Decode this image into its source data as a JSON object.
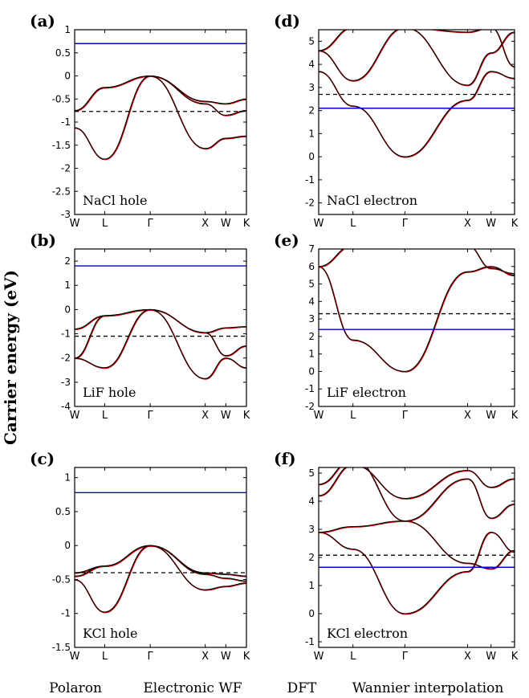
{
  "figure": {
    "ylabel": "Carrier energy (eV)",
    "legend": [
      "Polaron",
      "Electronic WF",
      "DFT",
      "Wannier interpolation"
    ],
    "colors": {
      "polaron": "#0000cc",
      "wf": "#000000",
      "dft": "#000000",
      "wannier": "#cc0000"
    }
  },
  "chart_data": [
    {
      "panel": "(a)",
      "type": "line",
      "label": "NaCl hole",
      "x_ticks": [
        "W",
        "L",
        "Γ",
        "X",
        "W",
        "K"
      ],
      "ylim": [
        -3,
        1
      ],
      "y_ticks": [
        "-3",
        "-2.5",
        "-2",
        "-1.5",
        "-1",
        "-0.5",
        "0",
        "0.5",
        "1"
      ],
      "polaron_level": 0.7,
      "wf_level": -0.77,
      "series": [
        {
          "values": [
            -0.75,
            -0.25,
            0.0,
            -0.55,
            -0.6,
            -0.5
          ]
        },
        {
          "values": [
            -0.75,
            -0.25,
            0.0,
            -0.6,
            -0.85,
            -0.75
          ]
        },
        {
          "values": [
            -1.12,
            -1.8,
            0.0,
            -1.57,
            -1.35,
            -1.3
          ]
        }
      ]
    },
    {
      "panel": "(d)",
      "type": "line",
      "label": "NaCl electron",
      "x_ticks": [
        "W",
        "L",
        "Γ",
        "X",
        "W",
        "K"
      ],
      "ylim": [
        -2.5,
        5.5
      ],
      "y_ticks": [
        "-2",
        "-1",
        "0",
        "1",
        "2",
        "3",
        "4",
        "5"
      ],
      "polaron_level": 2.1,
      "wf_level": 2.7,
      "series": [
        {
          "values": [
            3.7,
            2.2,
            0.0,
            2.45,
            3.7,
            3.4
          ]
        },
        {
          "values": [
            4.6,
            5.6,
            5.6,
            3.1,
            4.5,
            5.4
          ]
        },
        {
          "values": [
            4.6,
            3.3,
            5.6,
            5.4,
            5.6,
            3.9
          ]
        }
      ]
    },
    {
      "panel": "(b)",
      "type": "line",
      "label": "LiF hole",
      "x_ticks": [
        "W",
        "L",
        "Γ",
        "X",
        "W",
        "K"
      ],
      "ylim": [
        -4,
        2.5
      ],
      "y_ticks": [
        "-4",
        "-3",
        "-2",
        "-1",
        "0",
        "1",
        "2"
      ],
      "polaron_level": 1.8,
      "wf_level": -1.1,
      "series": [
        {
          "values": [
            -0.8,
            -0.25,
            0.0,
            -0.95,
            -0.75,
            -0.7
          ]
        },
        {
          "values": [
            -2.0,
            -0.25,
            0.0,
            -0.95,
            -1.9,
            -1.5
          ]
        },
        {
          "values": [
            -2.0,
            -2.4,
            0.0,
            -2.85,
            -2.0,
            -2.4
          ]
        }
      ]
    },
    {
      "panel": "(e)",
      "type": "line",
      "label": "LiF electron",
      "x_ticks": [
        "W",
        "L",
        "Γ",
        "X",
        "W",
        "K"
      ],
      "ylim": [
        -2,
        7
      ],
      "y_ticks": [
        "-2",
        "-1",
        "0",
        "1",
        "2",
        "3",
        "4",
        "5",
        "6",
        "7"
      ],
      "polaron_level": 2.4,
      "wf_level": 3.3,
      "series": [
        {
          "values": [
            6.0,
            1.8,
            0.0,
            5.7,
            6.0,
            5.5
          ]
        },
        {
          "values": [
            6.0,
            7.2,
            7.2,
            7.2,
            5.9,
            5.6
          ]
        }
      ]
    },
    {
      "panel": "(c)",
      "type": "line",
      "label": "KCl hole",
      "x_ticks": [
        "W",
        "L",
        "Γ",
        "X",
        "W",
        "K"
      ],
      "ylim": [
        -1.5,
        1.15
      ],
      "y_ticks": [
        "-1.5",
        "-1",
        "-0.5",
        "0",
        "0.5",
        "1"
      ],
      "polaron_level": 0.78,
      "wf_level": -0.4,
      "series": [
        {
          "values": [
            -0.4,
            -0.3,
            0.0,
            -0.4,
            -0.42,
            -0.45
          ]
        },
        {
          "values": [
            -0.45,
            -0.3,
            0.0,
            -0.42,
            -0.48,
            -0.52
          ]
        },
        {
          "values": [
            -0.5,
            -0.98,
            0.0,
            -0.65,
            -0.6,
            -0.55
          ]
        }
      ]
    },
    {
      "panel": "(f)",
      "type": "line",
      "label": "KCl electron",
      "x_ticks": [
        "W",
        "L",
        "Γ",
        "X",
        "W",
        "K"
      ],
      "ylim": [
        -1.2,
        5.2
      ],
      "y_ticks": [
        "-1",
        "0",
        "1",
        "2",
        "3",
        "4",
        "5"
      ],
      "polaron_level": 1.65,
      "wf_level": 2.08,
      "series": [
        {
          "values": [
            2.9,
            2.3,
            0.0,
            1.5,
            2.9,
            2.2
          ]
        },
        {
          "values": [
            2.9,
            3.1,
            3.3,
            1.8,
            1.6,
            2.25
          ]
        },
        {
          "values": [
            4.2,
            5.3,
            4.1,
            5.1,
            4.5,
            4.8
          ]
        },
        {
          "values": [
            4.6,
            5.5,
            3.3,
            4.8,
            3.4,
            3.9
          ]
        }
      ]
    }
  ]
}
